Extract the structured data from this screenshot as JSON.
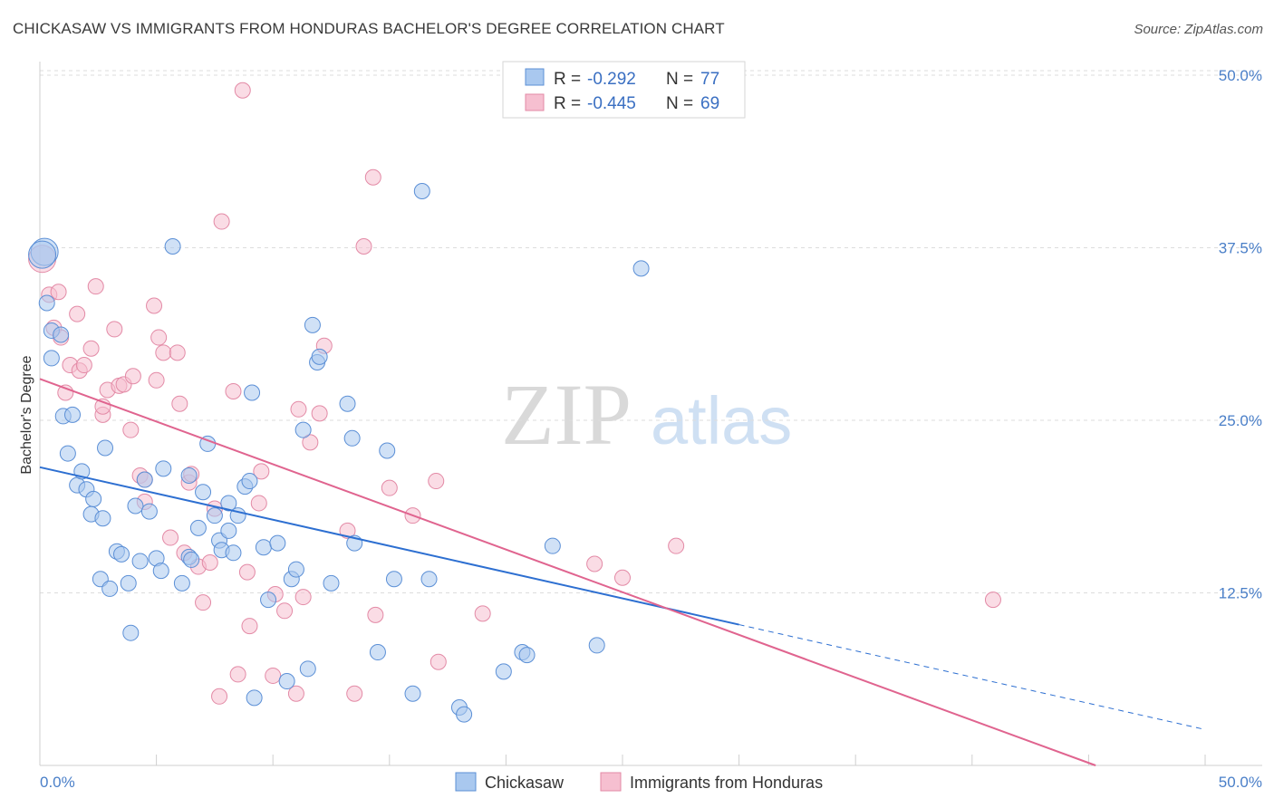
{
  "title": "CHICKASAW VS IMMIGRANTS FROM HONDURAS BACHELOR'S DEGREE CORRELATION CHART",
  "source": "Source: ZipAtlas.com",
  "watermark": {
    "zip": "ZIP",
    "atlas": "atlas"
  },
  "colors": {
    "blue_fill": "#a9c8ef",
    "blue_stroke": "#5b8fd6",
    "blue_line": "#2d6fd1",
    "pink_fill": "#f6bfd0",
    "pink_stroke": "#e38aa6",
    "pink_line": "#e0648f",
    "tick_label": "#4a7fc8",
    "grid": "#dddddd"
  },
  "legend": {
    "rows": [
      {
        "r_label": "R =",
        "r_value": "-0.292",
        "n_label": "N =",
        "n_value": "77"
      },
      {
        "r_label": "R =",
        "r_value": "-0.445",
        "n_label": "N =",
        "n_value": "69"
      }
    ]
  },
  "chart_data": {
    "type": "scatter",
    "title": "CHICKASAW VS IMMIGRANTS FROM HONDURAS BACHELOR'S DEGREE CORRELATION CHART",
    "xlabel": "",
    "ylabel": "Bachelor's Degree",
    "xlim": [
      0,
      50
    ],
    "ylim": [
      0,
      50
    ],
    "x_tick_labels": [
      "0.0%",
      "50.0%"
    ],
    "y_ticks": [
      12.5,
      25.0,
      37.5,
      50.0
    ],
    "y_tick_labels": [
      "12.5%",
      "25.0%",
      "37.5%",
      "50.0%"
    ],
    "grid": true,
    "series": [
      {
        "name": "Chickasaw",
        "color": "blue",
        "R": -0.292,
        "N": 77,
        "trend": {
          "x0": 0,
          "y0": 21.6,
          "x1": 30,
          "y1": 10.2,
          "dash_x1": 50,
          "dash_y1": 2.6
        },
        "points": [
          [
            0.2,
            37.2
          ],
          [
            0.3,
            33.5
          ],
          [
            0.5,
            31.5
          ],
          [
            0.5,
            29.5
          ],
          [
            0.9,
            31.2
          ],
          [
            1.0,
            25.3
          ],
          [
            1.2,
            22.6
          ],
          [
            1.4,
            25.4
          ],
          [
            1.6,
            20.3
          ],
          [
            1.8,
            21.3
          ],
          [
            2.0,
            20.0
          ],
          [
            2.2,
            18.2
          ],
          [
            2.3,
            19.3
          ],
          [
            2.7,
            17.9
          ],
          [
            2.6,
            13.5
          ],
          [
            2.8,
            23.0
          ],
          [
            3.0,
            12.8
          ],
          [
            3.3,
            15.5
          ],
          [
            3.5,
            15.3
          ],
          [
            3.8,
            13.2
          ],
          [
            3.9,
            9.6
          ],
          [
            4.1,
            18.8
          ],
          [
            4.3,
            14.8
          ],
          [
            4.5,
            20.7
          ],
          [
            4.7,
            18.4
          ],
          [
            5.0,
            15.0
          ],
          [
            5.2,
            14.1
          ],
          [
            5.3,
            21.5
          ],
          [
            5.7,
            37.6
          ],
          [
            6.1,
            13.2
          ],
          [
            6.4,
            21.0
          ],
          [
            6.4,
            15.1
          ],
          [
            6.5,
            14.9
          ],
          [
            6.8,
            17.2
          ],
          [
            7.0,
            19.8
          ],
          [
            7.2,
            23.3
          ],
          [
            7.5,
            18.1
          ],
          [
            7.7,
            16.3
          ],
          [
            7.8,
            15.6
          ],
          [
            8.1,
            17.0
          ],
          [
            8.1,
            19.0
          ],
          [
            8.3,
            15.4
          ],
          [
            8.5,
            18.1
          ],
          [
            8.8,
            20.2
          ],
          [
            9.0,
            20.6
          ],
          [
            9.1,
            27.0
          ],
          [
            9.2,
            4.9
          ],
          [
            9.6,
            15.8
          ],
          [
            9.8,
            12.0
          ],
          [
            10.2,
            16.1
          ],
          [
            10.6,
            6.1
          ],
          [
            10.8,
            13.5
          ],
          [
            11.0,
            14.2
          ],
          [
            11.3,
            24.3
          ],
          [
            11.5,
            7.0
          ],
          [
            11.7,
            31.9
          ],
          [
            11.9,
            29.2
          ],
          [
            12.0,
            29.6
          ],
          [
            12.5,
            13.2
          ],
          [
            13.2,
            26.2
          ],
          [
            13.4,
            23.7
          ],
          [
            13.5,
            16.1
          ],
          [
            14.5,
            8.2
          ],
          [
            14.9,
            22.8
          ],
          [
            15.2,
            13.5
          ],
          [
            16.0,
            5.2
          ],
          [
            16.4,
            41.6
          ],
          [
            16.7,
            13.5
          ],
          [
            18.0,
            4.2
          ],
          [
            18.2,
            3.7
          ],
          [
            19.9,
            6.8
          ],
          [
            20.7,
            8.2
          ],
          [
            20.9,
            8.0
          ],
          [
            22.0,
            15.9
          ],
          [
            23.9,
            8.7
          ],
          [
            25.8,
            36.0
          ],
          [
            0.1,
            37.0
          ]
        ]
      },
      {
        "name": "Immigrants from Honduras",
        "color": "pink",
        "R": -0.445,
        "N": 69,
        "trend": {
          "x0": 0,
          "y0": 28.0,
          "x1": 45.3,
          "y1": 0.0
        },
        "points": [
          [
            0.1,
            36.7
          ],
          [
            0.4,
            34.1
          ],
          [
            0.6,
            31.7
          ],
          [
            0.8,
            34.3
          ],
          [
            0.9,
            31.0
          ],
          [
            1.1,
            27.0
          ],
          [
            1.3,
            29.0
          ],
          [
            1.6,
            32.7
          ],
          [
            1.7,
            28.6
          ],
          [
            1.9,
            29.0
          ],
          [
            2.2,
            30.2
          ],
          [
            2.4,
            34.7
          ],
          [
            2.7,
            25.4
          ],
          [
            2.7,
            26.0
          ],
          [
            2.9,
            27.2
          ],
          [
            3.2,
            31.6
          ],
          [
            3.4,
            27.5
          ],
          [
            3.6,
            27.6
          ],
          [
            3.9,
            24.3
          ],
          [
            4.0,
            28.2
          ],
          [
            4.3,
            21.0
          ],
          [
            4.5,
            20.7
          ],
          [
            4.5,
            19.1
          ],
          [
            4.9,
            33.3
          ],
          [
            5.0,
            27.9
          ],
          [
            5.1,
            31.0
          ],
          [
            5.3,
            29.9
          ],
          [
            5.6,
            16.5
          ],
          [
            5.9,
            29.9
          ],
          [
            6.0,
            26.2
          ],
          [
            6.2,
            15.4
          ],
          [
            6.4,
            20.5
          ],
          [
            6.5,
            21.1
          ],
          [
            6.8,
            14.4
          ],
          [
            7.0,
            11.8
          ],
          [
            7.3,
            14.7
          ],
          [
            7.5,
            18.6
          ],
          [
            7.7,
            5.0
          ],
          [
            7.8,
            39.4
          ],
          [
            8.3,
            27.1
          ],
          [
            8.5,
            6.6
          ],
          [
            8.7,
            48.9
          ],
          [
            8.9,
            14.0
          ],
          [
            9.0,
            10.1
          ],
          [
            9.4,
            19.0
          ],
          [
            9.5,
            21.3
          ],
          [
            10.0,
            6.5
          ],
          [
            10.1,
            12.4
          ],
          [
            10.5,
            11.2
          ],
          [
            11.0,
            5.2
          ],
          [
            11.1,
            25.8
          ],
          [
            11.3,
            12.2
          ],
          [
            11.6,
            23.4
          ],
          [
            12.0,
            25.5
          ],
          [
            12.2,
            30.4
          ],
          [
            13.2,
            17.0
          ],
          [
            13.5,
            5.2
          ],
          [
            13.9,
            37.6
          ],
          [
            14.3,
            42.6
          ],
          [
            14.4,
            10.9
          ],
          [
            15.0,
            20.1
          ],
          [
            16.0,
            18.1
          ],
          [
            17.0,
            20.6
          ],
          [
            17.1,
            7.5
          ],
          [
            19.0,
            11.0
          ],
          [
            23.8,
            14.6
          ],
          [
            25.0,
            13.6
          ],
          [
            27.3,
            15.9
          ],
          [
            40.9,
            12.0
          ]
        ]
      }
    ]
  },
  "bottom_legend": [
    {
      "label": "Chickasaw"
    },
    {
      "label": "Immigrants from Honduras"
    }
  ]
}
